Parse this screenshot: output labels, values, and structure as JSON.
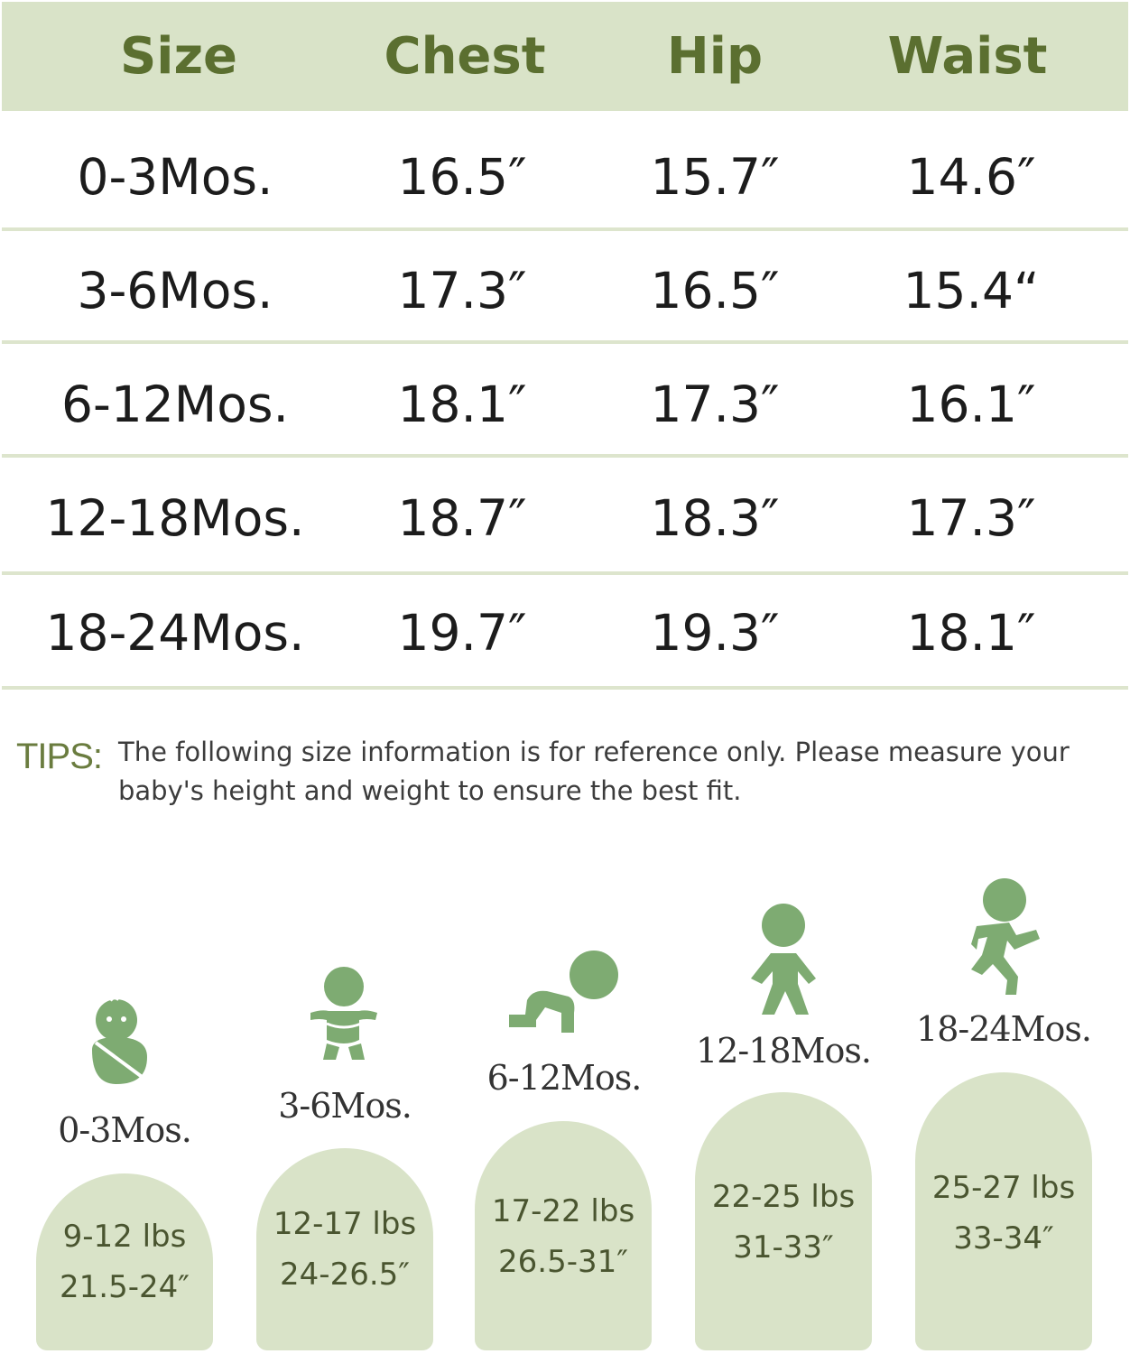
{
  "table": {
    "headers": [
      "Size",
      "Chest",
      "Hip",
      "Waist"
    ],
    "rows": [
      [
        "0-3Mos.",
        "16.5″",
        "15.7″",
        "14.6″"
      ],
      [
        "3-6Mos.",
        "17.3″",
        "16.5″",
        "15.4“"
      ],
      [
        "6-12Mos.",
        "18.1″",
        "17.3″",
        "16.1″"
      ],
      [
        "12-18Mos.",
        "18.7″",
        "18.3″",
        "17.3″"
      ],
      [
        "18-24Mos.",
        "19.7″",
        "19.3″",
        "18.1″"
      ]
    ]
  },
  "tips": {
    "label": "TIPS:",
    "text": "The following size information is for reference only. Please measure your baby's height and weight to ensure the best fit."
  },
  "stages": [
    {
      "label": "0-3Mos.",
      "weight": "9-12 lbs",
      "height": "21.5-24″",
      "icon": "swaddled-baby-icon"
    },
    {
      "label": "3-6Mos.",
      "weight": "12-17 lbs",
      "height": "24-26.5″",
      "icon": "diaper-baby-icon"
    },
    {
      "label": "6-12Mos.",
      "weight": "17-22 lbs",
      "height": "26.5-31″",
      "icon": "crawling-baby-icon"
    },
    {
      "label": "12-18Mos.",
      "weight": "22-25 lbs",
      "height": "31-33″",
      "icon": "standing-toddler-icon"
    },
    {
      "label": "18-24Mos.",
      "weight": "25-27 lbs",
      "height": "33-34″",
      "icon": "running-toddler-icon"
    }
  ],
  "colors": {
    "header_bg": "#d9e3c8",
    "header_text": "#5b6f30",
    "icon_green": "#7eab72",
    "divider": "#dde5cd"
  }
}
